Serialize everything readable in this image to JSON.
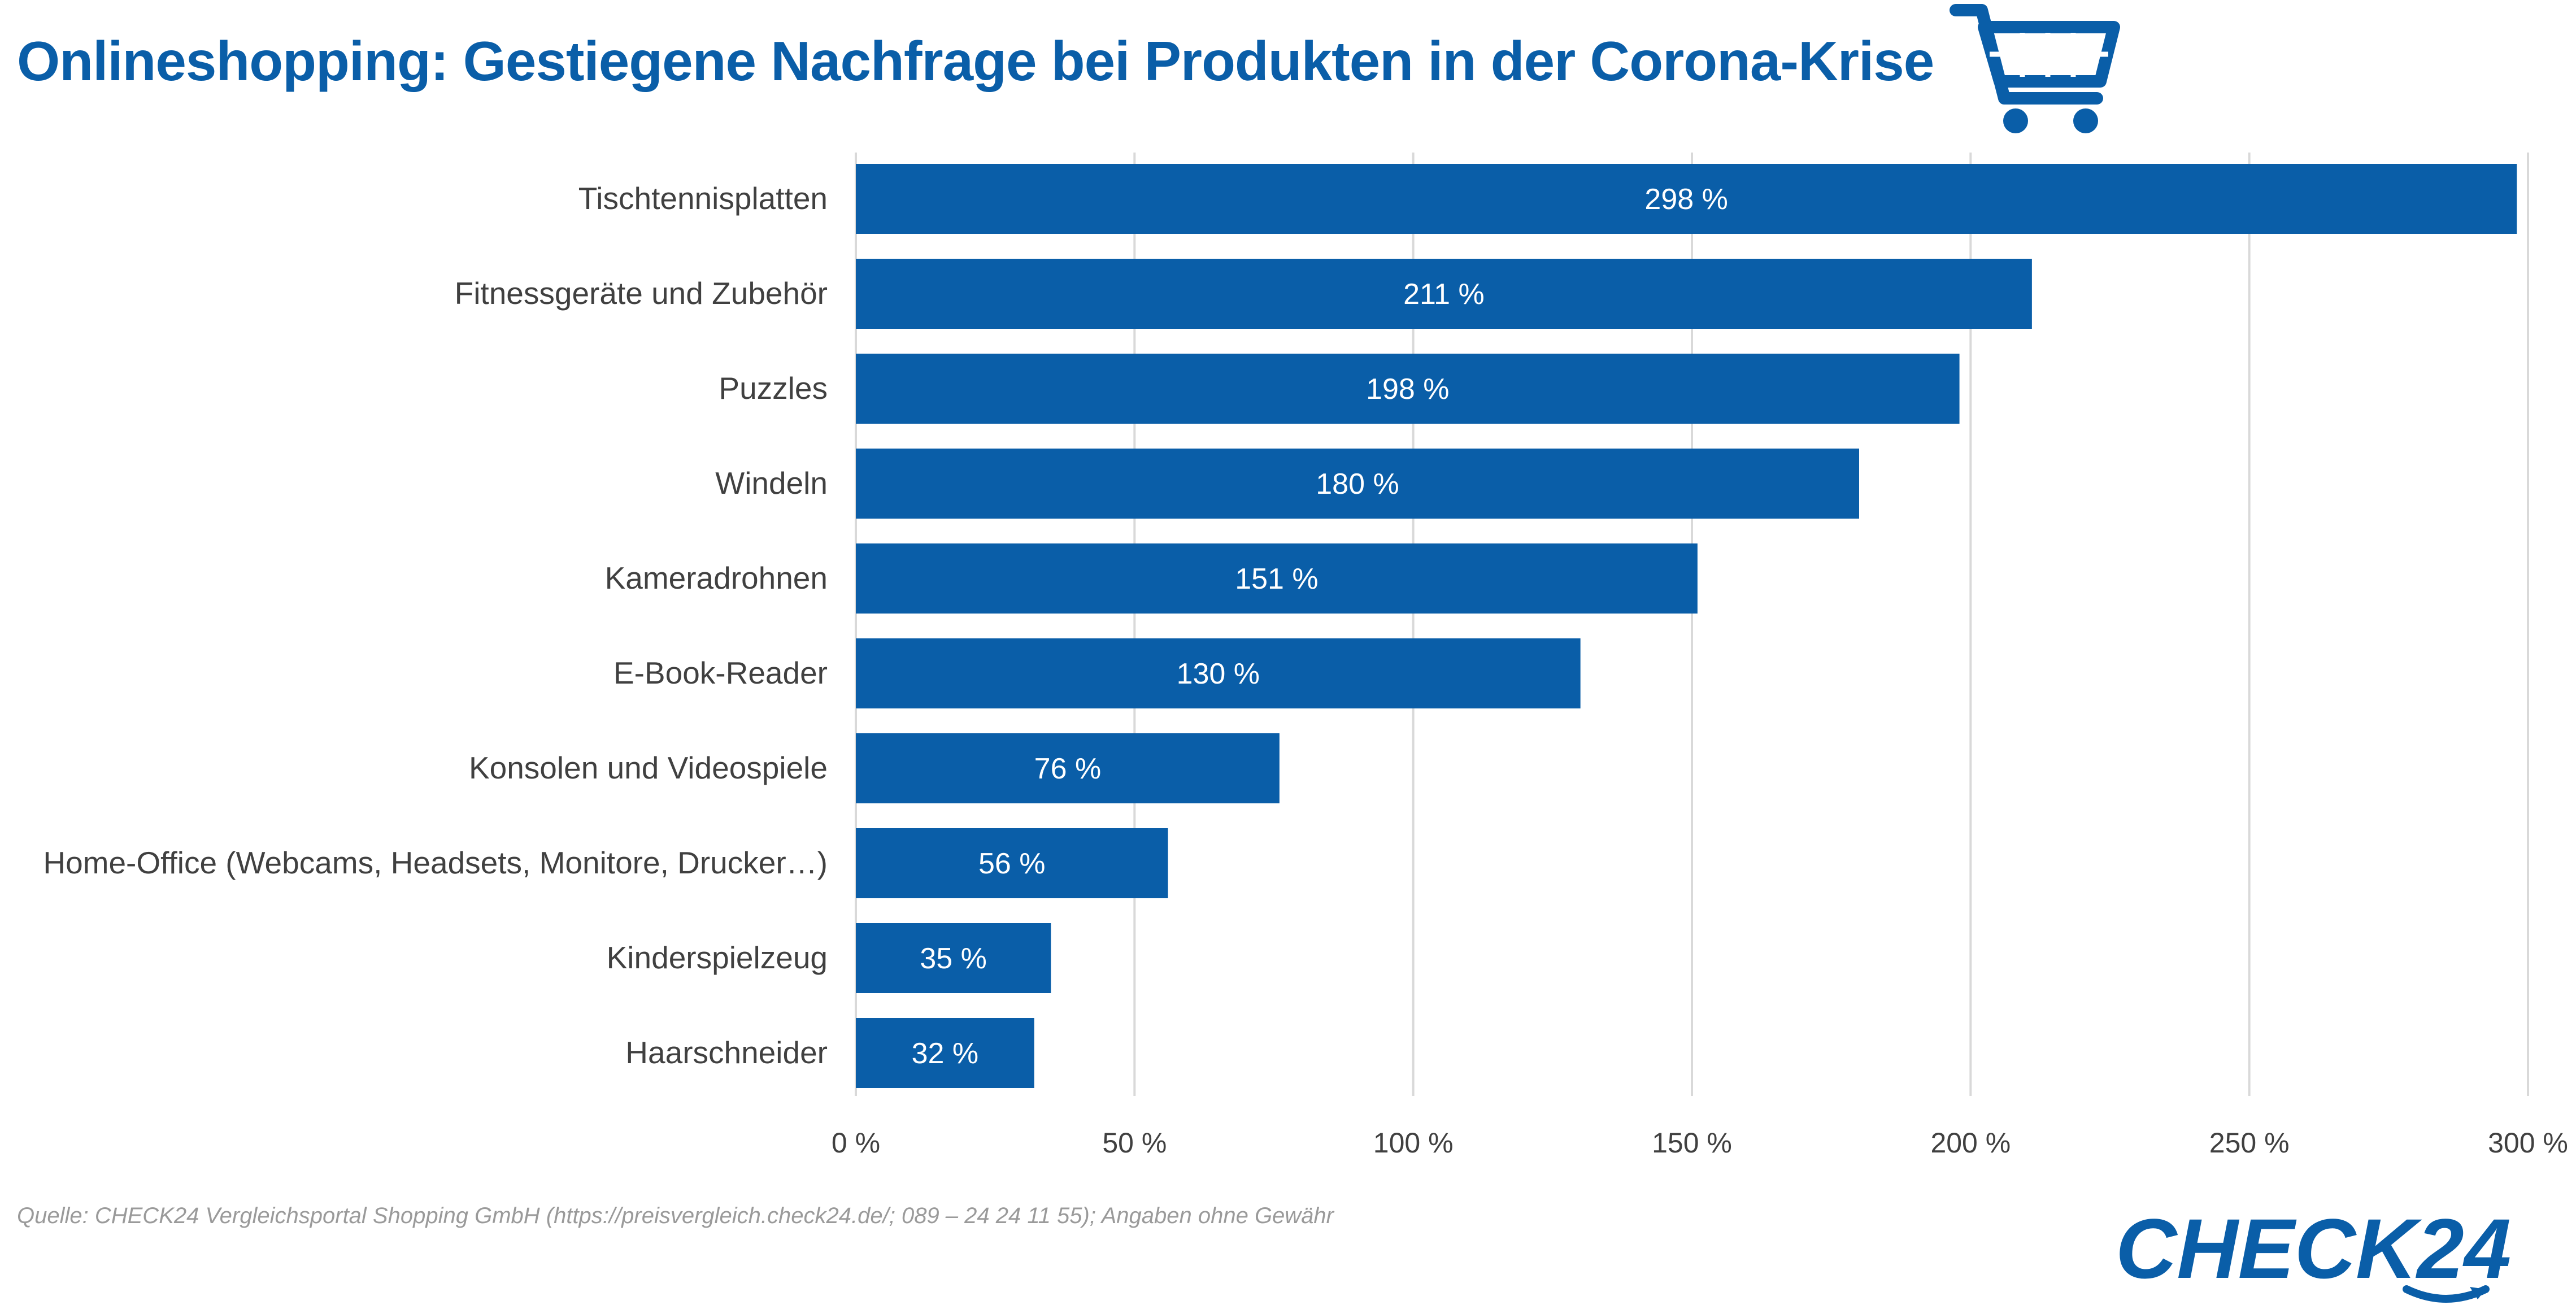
{
  "header": {
    "title": "Onlineshopping: Gestiegene Nachfrage bei Produkten in der Corona-Krise",
    "cart_icon": "shopping-cart-icon"
  },
  "chart_data": {
    "type": "bar",
    "orientation": "horizontal",
    "categories": [
      "Tischtennisplatten",
      "Fitnessgeräte und Zubehör",
      "Puzzles",
      "Windeln",
      "Kameradrohnen",
      "E-Book-Reader",
      "Konsolen und Videospiele",
      "Home-Office (Webcams, Headsets, Monitore, Drucker…)",
      "Kinderspielzeug",
      "Haarschneider"
    ],
    "values": [
      298,
      211,
      198,
      180,
      151,
      130,
      76,
      56,
      35,
      32
    ],
    "data_labels": [
      "298 %",
      "211 %",
      "198 %",
      "180 %",
      "151 %",
      "130 %",
      "76 %",
      "56 %",
      "35 %",
      "32 %"
    ],
    "xlim": [
      0,
      300
    ],
    "xticks": [
      0,
      50,
      100,
      150,
      200,
      250,
      300
    ],
    "xtick_labels": [
      "0 %",
      "50 %",
      "100 %",
      "150 %",
      "200 %",
      "250 %",
      "300 %"
    ],
    "grid": "vertical",
    "bar_color": "#0a5ea8",
    "gridline_color": "#d9d9d9"
  },
  "footer": {
    "source": "Quelle: CHECK24 Vergleichsportal Shopping GmbH (https://preisvergleich.check24.de/; 089 – 24 24 11 55); Angaben ohne Gewähr",
    "logo_text": "CHECK24"
  },
  "colors": {
    "brand": "#0a5ea8",
    "label_text": "#404040",
    "source_text": "#9a9a9a"
  }
}
